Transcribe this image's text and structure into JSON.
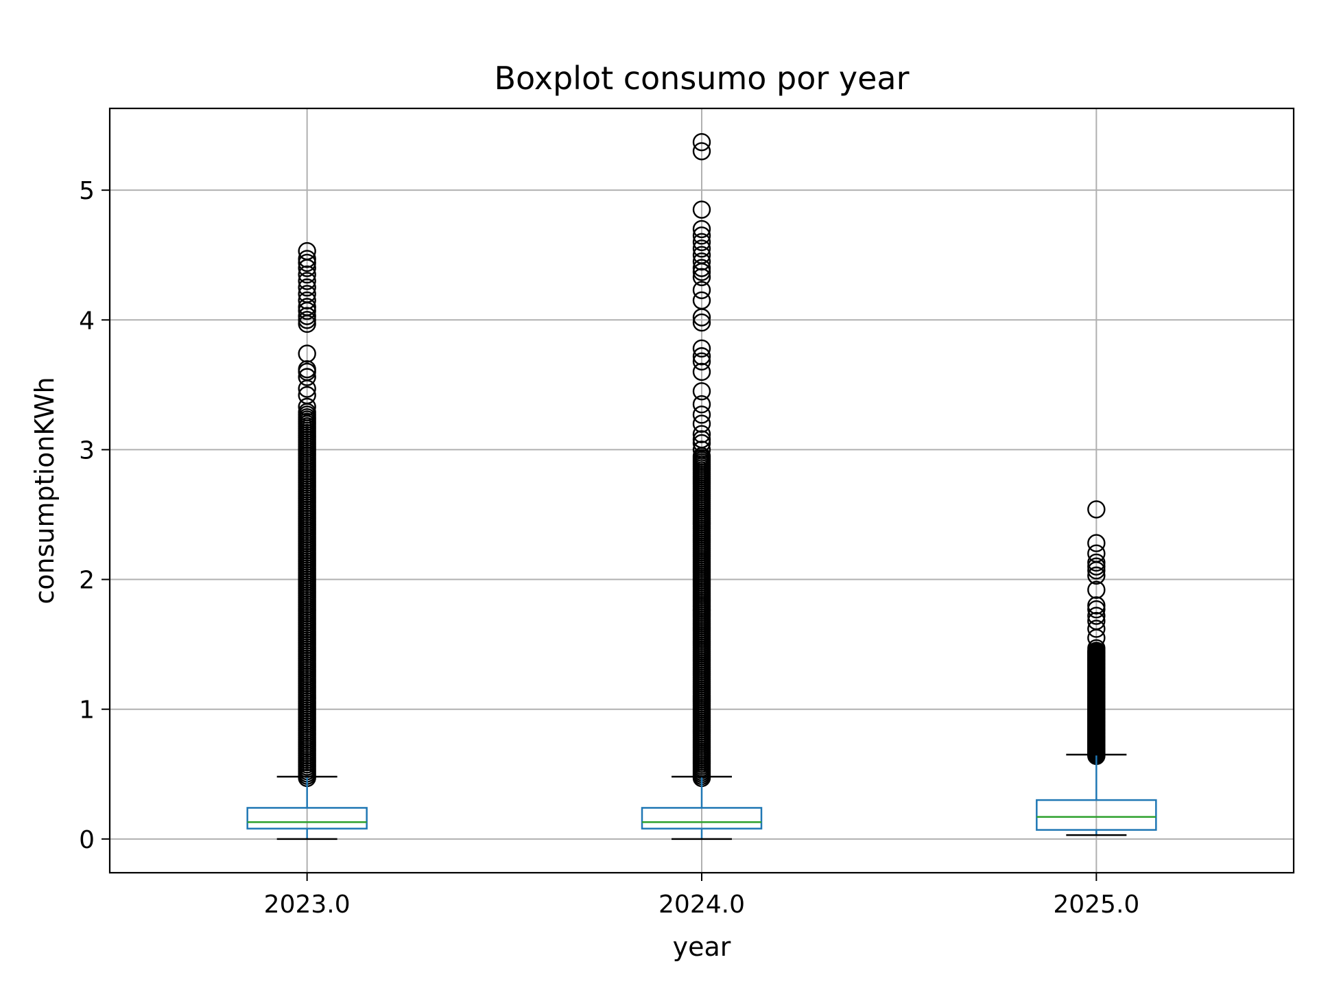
{
  "chart_data": {
    "type": "boxplot",
    "title": "Boxplot consumo por year",
    "xlabel": "year",
    "ylabel": "consumptionKWh",
    "ylim": [
      -0.26,
      5.63
    ],
    "yticks": [
      0,
      1,
      2,
      3,
      4,
      5
    ],
    "grid": true,
    "legend": "none",
    "colors": {
      "box": "#1f77b4",
      "median": "#2ca02c",
      "whisker_cap": "#000000",
      "flier": "#000000",
      "grid": "#b0b0b0"
    },
    "categories": [
      "2023.0",
      "2024.0",
      "2025.0"
    ],
    "boxes": [
      {
        "category": "2023.0",
        "whisker_low": 0.0,
        "q1": 0.08,
        "median": 0.13,
        "q3": 0.24,
        "whisker_high": 0.48,
        "fliers_dense_range": [
          0.47,
          3.25
        ],
        "fliers": [
          3.27,
          3.29,
          3.33,
          3.42,
          3.47,
          3.56,
          3.6,
          3.62,
          3.74,
          3.97,
          4.0,
          4.03,
          4.07,
          4.1,
          4.15,
          4.2,
          4.25,
          4.3,
          4.35,
          4.4,
          4.44,
          4.47,
          4.53
        ]
      },
      {
        "category": "2024.0",
        "whisker_low": 0.0,
        "q1": 0.08,
        "median": 0.13,
        "q3": 0.24,
        "whisker_high": 0.48,
        "fliers_dense_range": [
          0.47,
          2.95
        ],
        "fliers": [
          3.0,
          3.05,
          3.08,
          3.12,
          3.2,
          3.27,
          3.35,
          3.45,
          3.6,
          3.68,
          3.72,
          3.78,
          3.98,
          4.02,
          4.15,
          4.23,
          4.33,
          4.37,
          4.4,
          4.45,
          4.5,
          4.55,
          4.6,
          4.65,
          4.7,
          4.85,
          5.3,
          5.37
        ]
      },
      {
        "category": "2025.0",
        "whisker_low": 0.03,
        "q1": 0.07,
        "median": 0.17,
        "q3": 0.3,
        "whisker_high": 0.65,
        "fliers_dense_range": [
          0.64,
          1.45
        ],
        "fliers": [
          1.47,
          1.55,
          1.62,
          1.68,
          1.72,
          1.77,
          1.8,
          1.92,
          2.03,
          2.07,
          2.1,
          2.13,
          2.2,
          2.28,
          2.54
        ]
      }
    ]
  }
}
